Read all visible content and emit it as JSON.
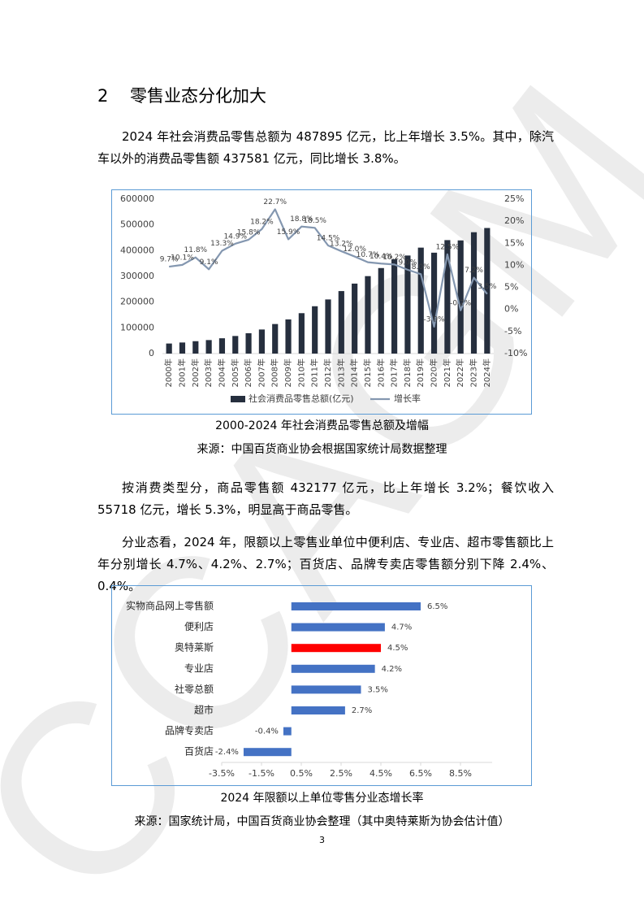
{
  "heading": {
    "number": "2",
    "title": "零售业态分化加大"
  },
  "paragraphs": [
    "2024 年社会消费品零售总额为 487895 亿元，比上年增长 3.5%。其中，除汽车以外的消费品零售额 437581 亿元，同比增长 3.8%。",
    "按消费类型分，商品零售额 432177 亿元，比上年增长 3.2%；餐饮收入 55718 亿元，增长 5.3%，明显高于商品零售。",
    "分业态看，2024 年，限额以上零售业单位中便利店、专业店、超市零售额比上年分别增长 4.7%、4.2%、2.7%；百货店、品牌专卖店零售额分别下降 2.4%、0.4%。"
  ],
  "chart_data": [
    {
      "type": "bar",
      "caption": "2000-2024 年社会消费品零售总额及增幅",
      "source": "来源：中国百货商业协会根据国家统计局数据整理",
      "categories": [
        "2000年",
        "2001年",
        "2002年",
        "2003年",
        "2004年",
        "2005年",
        "2006年",
        "2007年",
        "2008年",
        "2009年",
        "2010年",
        "2011年",
        "2012年",
        "2013年",
        "2014年",
        "2015年",
        "2016年",
        "2017年",
        "2018年",
        "2019年",
        "2020年",
        "2021年",
        "2022年",
        "2023年",
        "2024年"
      ],
      "series": [
        {
          "name": "社会消费品零售总额(亿元)",
          "type": "bar",
          "color": "#262f3e",
          "values": [
            39106,
            43055,
            48136,
            52516,
            59501,
            68353,
            79145,
            93572,
            114830,
            132678,
            156998,
            183919,
            210307,
            242843,
            271896,
            300931,
            332316,
            366262,
            380987,
            411649,
            391981,
            440823,
            439733,
            471495,
            487895
          ]
        },
        {
          "name": "增长率",
          "type": "line",
          "axis": "y2",
          "color": "#8497b0",
          "values": [
            9.7,
            10.1,
            11.8,
            9.1,
            13.3,
            14.9,
            15.8,
            18.2,
            22.7,
            15.9,
            18.8,
            18.5,
            14.5,
            13.2,
            12.0,
            10.7,
            10.4,
            10.2,
            9.0,
            8.0,
            -3.9,
            12.5,
            -0.2,
            7.2,
            3.5
          ],
          "value_labels": [
            "9.7%",
            "10.1%",
            "11.8%",
            "9.1%",
            "13.3%",
            "14.9%",
            "15.8%",
            "18.2%",
            "22.7%",
            "15.9%",
            "18.8%",
            "18.5%",
            "14.5%",
            "13.2%",
            "12.0%",
            "10.7%",
            "10.4%",
            "10.2%",
            "9.0%",
            "8.0%",
            "-3.9%",
            "12.5%",
            "-0.2%",
            "7.2%",
            "3.5%"
          ]
        }
      ],
      "ylim": [
        0,
        600000
      ],
      "yticks": [
        0,
        100000,
        200000,
        300000,
        400000,
        500000,
        600000
      ],
      "y2lim": [
        -10,
        25
      ],
      "y2ticks": [
        {
          "value": -10,
          "label": "-10%"
        },
        {
          "value": -5,
          "label": "-5%"
        },
        {
          "value": 0,
          "label": "0%"
        },
        {
          "value": 5,
          "label": "5%"
        },
        {
          "value": 10,
          "label": "10%"
        },
        {
          "value": 15,
          "label": "15%"
        },
        {
          "value": 20,
          "label": "20%"
        },
        {
          "value": 25,
          "label": "25%"
        }
      ],
      "legend": "bottom"
    },
    {
      "type": "barh",
      "caption": "2024 年限额以上单位零售分业态增长率",
      "source": "来源：国家统计局，中国百货商业协会整理（其中奥特莱斯为协会估计值）",
      "categories": [
        "实物商品网上零售额",
        "便利店",
        "奥特莱斯",
        "专业店",
        "社零总额",
        "超市",
        "品牌专卖店",
        "百货店"
      ],
      "values": [
        6.5,
        4.7,
        4.5,
        4.2,
        3.5,
        2.7,
        -0.4,
        -2.4
      ],
      "value_labels": [
        "6.5%",
        "4.7%",
        "4.5%",
        "4.2%",
        "3.5%",
        "2.7%",
        "-0.4%",
        "-2.4%"
      ],
      "colors": [
        "#4472c4",
        "#4472c4",
        "#ff0000",
        "#4472c4",
        "#4472c4",
        "#4472c4",
        "#4472c4",
        "#4472c4"
      ],
      "xlim": [
        -3.5,
        10.1
      ],
      "xticks": [
        {
          "value": -3.5,
          "label": "-3.5%"
        },
        {
          "value": -1.5,
          "label": "-1.5%"
        },
        {
          "value": 0.5,
          "label": "0.5%"
        },
        {
          "value": 2.5,
          "label": "2.5%"
        },
        {
          "value": 4.5,
          "label": "4.5%"
        },
        {
          "value": 6.5,
          "label": "6.5%"
        },
        {
          "value": 8.5,
          "label": "8.5%"
        }
      ]
    }
  ],
  "page_number": "3",
  "watermark": "CCAGM"
}
